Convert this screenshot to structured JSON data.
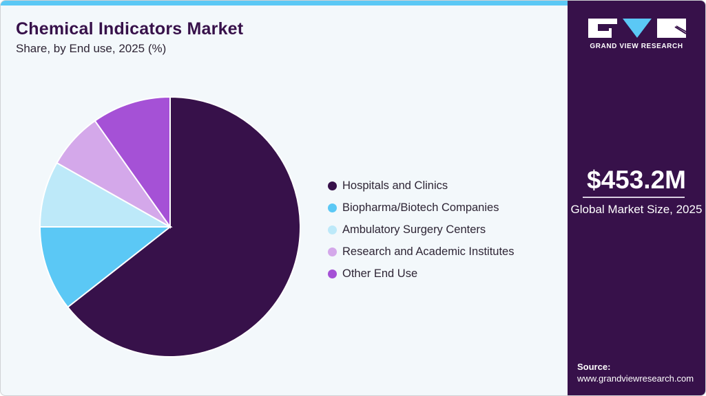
{
  "header": {
    "title": "Chemical Indicators Market",
    "subtitle": "Share, by End use, 2025 (%)"
  },
  "legend": {
    "items": [
      {
        "label": "Hospitals and Clinics",
        "color": "#37114a"
      },
      {
        "label": "Biopharma/Biotech Companies",
        "color": "#5bc8f5"
      },
      {
        "label": "Ambulatory Surgery Centers",
        "color": "#bde9f9"
      },
      {
        "label": "Research and Academic Institutes",
        "color": "#d4a8ea"
      },
      {
        "label": "Other End Use",
        "color": "#a551d6"
      }
    ]
  },
  "sidebar": {
    "logo_text": "GRAND VIEW RESEARCH",
    "market_size": "$453.2M",
    "market_size_label": "Global Market Size, 2025",
    "source_label": "Source:",
    "source_url": "www.grandviewresearch.com"
  },
  "colors": {
    "brand_dark": "#37114a",
    "accent": "#5bc8f5",
    "background": "#f3f8fb"
  },
  "chart_data": {
    "type": "pie",
    "title": "Chemical Indicators Market",
    "subtitle": "Share, by End use, 2025 (%)",
    "categories": [
      "Hospitals and Clinics",
      "Biopharma/Biotech Companies",
      "Ambulatory Surgery Centers",
      "Research and Academic Institutes",
      "Other End Use"
    ],
    "values": [
      64.4,
      10.6,
      8.2,
      7.0,
      9.8
    ],
    "colors": [
      "#37114a",
      "#5bc8f5",
      "#bde9f9",
      "#d4a8ea",
      "#a551d6"
    ],
    "start_angle": "12 o'clock, clockwise",
    "legend_position": "right",
    "unit": "%"
  }
}
